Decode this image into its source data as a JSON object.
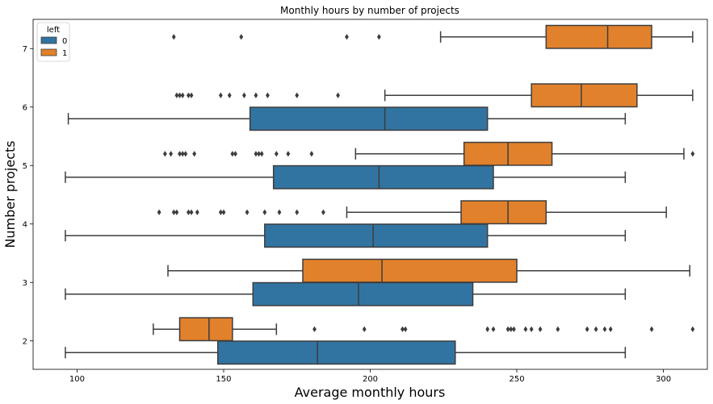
{
  "chart_data": {
    "type": "boxplot",
    "orientation": "horizontal",
    "title": "Monthly hours by number of projects",
    "xlabel": "Average monthly hours",
    "ylabel": "Number projects",
    "xlim": [
      85,
      315
    ],
    "xticks": [
      100,
      150,
      200,
      250,
      300
    ],
    "categories": [
      "7",
      "6",
      "5",
      "4",
      "3",
      "2"
    ],
    "legend": {
      "title": "left",
      "placement": "top-left",
      "entries": [
        {
          "label": "0",
          "color": "#3274a1"
        },
        {
          "label": "1",
          "color": "#e1812c"
        }
      ]
    },
    "series": [
      {
        "name": "0",
        "color": "#3274a1",
        "boxes": [
          null,
          {
            "whisker_low": 97,
            "q1": 159,
            "median": 205,
            "q3": 240,
            "whisker_high": 287,
            "outliers": []
          },
          {
            "whisker_low": 96,
            "q1": 167,
            "median": 203,
            "q3": 242,
            "whisker_high": 287,
            "outliers": []
          },
          {
            "whisker_low": 96,
            "q1": 164,
            "median": 201,
            "q3": 240,
            "whisker_high": 287,
            "outliers": []
          },
          {
            "whisker_low": 96,
            "q1": 160,
            "median": 196,
            "q3": 235,
            "whisker_high": 287,
            "outliers": []
          },
          {
            "whisker_low": 96,
            "q1": 148,
            "median": 182,
            "q3": 229,
            "whisker_high": 287,
            "outliers": []
          }
        ]
      },
      {
        "name": "1",
        "color": "#e1812c",
        "boxes": [
          {
            "whisker_low": 224,
            "q1": 260,
            "median": 281,
            "q3": 296,
            "whisker_high": 310,
            "outliers": [
              133,
              156,
              192,
              203
            ]
          },
          {
            "whisker_low": 205,
            "q1": 255,
            "median": 272,
            "q3": 291,
            "whisker_high": 310,
            "outliers": [
              134,
              135,
              136,
              138,
              139,
              149,
              152,
              157,
              161,
              165,
              175,
              189
            ]
          },
          {
            "whisker_low": 195,
            "q1": 232,
            "median": 247,
            "q3": 262,
            "whisker_high": 307,
            "outliers": [
              130,
              132,
              135,
              136,
              137,
              140,
              153,
              154,
              161,
              162,
              163,
              168,
              172,
              180,
              310
            ]
          },
          {
            "whisker_low": 192,
            "q1": 231,
            "median": 247,
            "q3": 260,
            "whisker_high": 301,
            "outliers": [
              128,
              133,
              134,
              138,
              139,
              141,
              149,
              150,
              158,
              164,
              169,
              175,
              184
            ]
          },
          {
            "whisker_low": 131,
            "q1": 177,
            "median": 204,
            "q3": 250,
            "whisker_high": 309,
            "outliers": []
          },
          {
            "whisker_low": 126,
            "q1": 135,
            "median": 145,
            "q3": 153,
            "whisker_high": 168,
            "outliers": [
              181,
              198,
              211,
              212,
              240,
              242,
              247,
              248,
              249,
              253,
              255,
              258,
              264,
              274,
              277,
              280,
              282,
              296,
              310
            ]
          }
        ]
      }
    ]
  }
}
